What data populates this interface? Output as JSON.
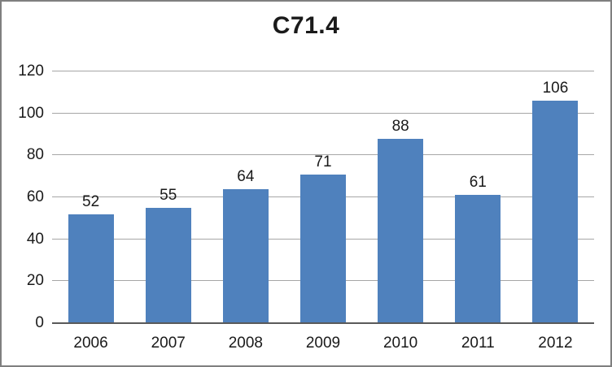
{
  "colors": {
    "bar": "#4f81bd",
    "gridline": "#a6a6a6",
    "axis": "#595959",
    "text": "#1a1a1a",
    "border": "#7f7f7f",
    "background": "#ffffff"
  },
  "chart_data": {
    "type": "bar",
    "title": "C71.4",
    "categories": [
      "2006",
      "2007",
      "2008",
      "2009",
      "2010",
      "2011",
      "2012"
    ],
    "values": [
      52,
      55,
      64,
      71,
      88,
      61,
      106
    ],
    "data_labels": [
      52,
      55,
      64,
      71,
      88,
      61,
      106
    ],
    "xlabel": "",
    "ylabel": "",
    "ylim": [
      0,
      120
    ],
    "yticks": [
      0,
      20,
      40,
      60,
      80,
      100,
      120
    ],
    "grid": true,
    "legend": "none"
  }
}
